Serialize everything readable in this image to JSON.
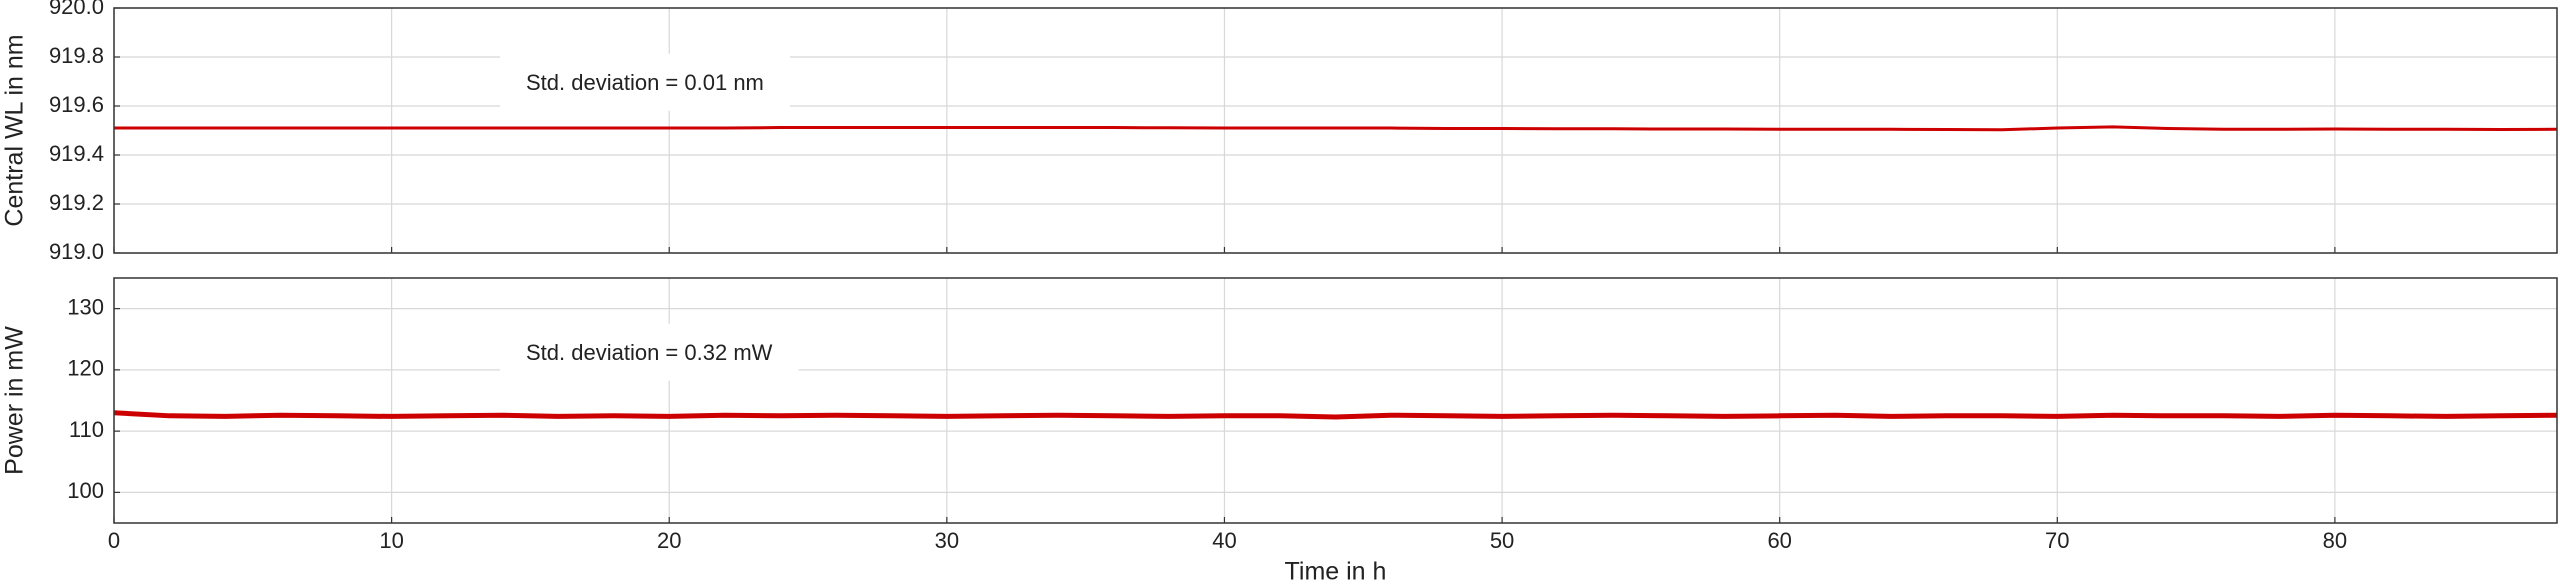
{
  "chart_data": [
    {
      "type": "line",
      "ylabel": "Central WL in nm",
      "annotation": "Std. deviation = 0.01 nm",
      "x": [
        0,
        2,
        4,
        6,
        8,
        10,
        12,
        14,
        16,
        18,
        20,
        22,
        24,
        26,
        28,
        30,
        32,
        34,
        36,
        38,
        40,
        42,
        44,
        46,
        48,
        50,
        52,
        54,
        56,
        58,
        60,
        62,
        64,
        66,
        68,
        70,
        72,
        74,
        76,
        78,
        80,
        82,
        84,
        86,
        88
      ],
      "series": [
        {
          "color": "#cc0000",
          "values": [
            919.51,
            919.51,
            919.51,
            919.51,
            919.51,
            919.51,
            919.51,
            919.51,
            919.51,
            919.51,
            919.51,
            919.51,
            919.512,
            919.512,
            919.512,
            919.512,
            919.512,
            919.512,
            919.512,
            919.511,
            919.51,
            919.51,
            919.51,
            919.51,
            919.508,
            919.508,
            919.507,
            919.507,
            919.506,
            919.506,
            919.505,
            919.505,
            919.505,
            919.504,
            919.503,
            919.51,
            919.515,
            919.508,
            919.505,
            919.505,
            919.506,
            919.505,
            919.505,
            919.504,
            919.505
          ]
        }
      ],
      "xlim": [
        0,
        88
      ],
      "ylim": [
        919,
        920
      ],
      "yticks": [
        {
          "value": 919,
          "label": "919.0"
        },
        919.2,
        919.4,
        919.6,
        919.8,
        {
          "value": 920,
          "label": "920.0"
        }
      ],
      "grid": true
    },
    {
      "type": "line",
      "ylabel": "Power in mW",
      "xlabel": "Time in h",
      "annotation": "Std. deviation = 0.32 mW",
      "x": [
        0,
        2,
        4,
        6,
        8,
        10,
        12,
        14,
        16,
        18,
        20,
        22,
        24,
        26,
        28,
        30,
        32,
        34,
        36,
        38,
        40,
        42,
        44,
        46,
        48,
        50,
        52,
        54,
        56,
        58,
        60,
        62,
        64,
        66,
        68,
        70,
        72,
        74,
        76,
        78,
        80,
        82,
        84,
        86,
        88
      ],
      "series": [
        {
          "color": "#cc0000",
          "values": [
            113.0,
            112.5,
            112.4,
            112.6,
            112.5,
            112.4,
            112.5,
            112.6,
            112.4,
            112.5,
            112.4,
            112.6,
            112.5,
            112.6,
            112.5,
            112.4,
            112.5,
            112.6,
            112.5,
            112.4,
            112.5,
            112.5,
            112.3,
            112.6,
            112.5,
            112.4,
            112.5,
            112.6,
            112.5,
            112.4,
            112.5,
            112.6,
            112.4,
            112.5,
            112.5,
            112.4,
            112.6,
            112.5,
            112.5,
            112.4,
            112.6,
            112.5,
            112.4,
            112.5,
            112.6
          ]
        }
      ],
      "xlim": [
        0,
        88
      ],
      "ylim": [
        95,
        135
      ],
      "xticks": [
        0,
        10,
        20,
        30,
        40,
        50,
        60,
        70,
        80
      ],
      "yticks": [
        100,
        110,
        120,
        130
      ],
      "grid": true
    }
  ]
}
